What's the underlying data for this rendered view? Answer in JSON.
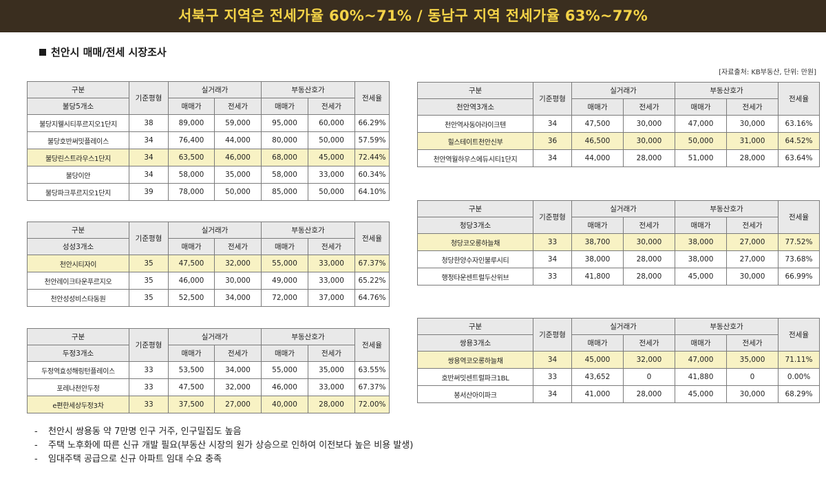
{
  "banner": {
    "text": "서북구 지역은 전세가율 60%~71%   / 동남구 지역 전세가율 63%~77%"
  },
  "section_title": "천안시 매매/전세 시장조사",
  "source_note": "[자료출처: KB부동산, 단위: 만원]",
  "headers": {
    "category": "구분",
    "base_size": "기준평형",
    "actual": "실거래가",
    "listing": "부동산호가",
    "sale": "매매가",
    "jeonse": "전세가",
    "ratio": "전세율"
  },
  "tables": [
    {
      "area": "불당5개소",
      "rows": [
        {
          "name": "불당지웰시티푸르지오1단지",
          "size": "38",
          "actual_sale": "89,000",
          "actual_jeonse": "59,000",
          "list_sale": "95,000",
          "list_jeonse": "60,000",
          "ratio": "66.29%",
          "highlight": false
        },
        {
          "name": "불당호반써밋플레이스",
          "size": "34",
          "actual_sale": "76,400",
          "actual_jeonse": "44,000",
          "list_sale": "80,000",
          "list_jeonse": "50,000",
          "ratio": "57.59%",
          "highlight": false
        },
        {
          "name": "불당린스트라우스1단지",
          "size": "34",
          "actual_sale": "63,500",
          "actual_jeonse": "46,000",
          "list_sale": "68,000",
          "list_jeonse": "45,000",
          "ratio": "72.44%",
          "highlight": true
        },
        {
          "name": "불당이안",
          "size": "34",
          "actual_sale": "58,000",
          "actual_jeonse": "35,000",
          "list_sale": "58,000",
          "list_jeonse": "33,000",
          "ratio": "60.34%",
          "highlight": false
        },
        {
          "name": "불당파크푸르지오1단지",
          "size": "39",
          "actual_sale": "78,000",
          "actual_jeonse": "50,000",
          "list_sale": "85,000",
          "list_jeonse": "50,000",
          "ratio": "64.10%",
          "highlight": false
        }
      ]
    },
    {
      "area": "성성3개소",
      "rows": [
        {
          "name": "천안시티자이",
          "size": "35",
          "actual_sale": "47,500",
          "actual_jeonse": "32,000",
          "list_sale": "55,000",
          "list_jeonse": "33,000",
          "ratio": "67.37%",
          "highlight": true
        },
        {
          "name": "천안레이크타운푸르지오",
          "size": "35",
          "actual_sale": "46,000",
          "actual_jeonse": "30,000",
          "list_sale": "49,000",
          "list_jeonse": "33,000",
          "ratio": "65.22%",
          "highlight": false
        },
        {
          "name": "천안성성비스타동원",
          "size": "35",
          "actual_sale": "52,500",
          "actual_jeonse": "34,000",
          "list_sale": "72,000",
          "list_jeonse": "37,000",
          "ratio": "64.76%",
          "highlight": false
        }
      ]
    },
    {
      "area": "두정3개소",
      "rows": [
        {
          "name": "두정역효성해링턴플레이스",
          "size": "33",
          "actual_sale": "53,500",
          "actual_jeonse": "34,000",
          "list_sale": "55,000",
          "list_jeonse": "35,000",
          "ratio": "63.55%",
          "highlight": false
        },
        {
          "name": "포레나천안두정",
          "size": "33",
          "actual_sale": "47,500",
          "actual_jeonse": "32,000",
          "list_sale": "46,000",
          "list_jeonse": "33,000",
          "ratio": "67.37%",
          "highlight": false
        },
        {
          "name": "e편한세상두정3차",
          "size": "33",
          "actual_sale": "37,500",
          "actual_jeonse": "27,000",
          "list_sale": "40,000",
          "list_jeonse": "28,000",
          "ratio": "72.00%",
          "highlight": true
        }
      ]
    },
    {
      "area": "천안역3개소",
      "rows": [
        {
          "name": "천안역사동아라이크텐",
          "size": "34",
          "actual_sale": "47,500",
          "actual_jeonse": "30,000",
          "list_sale": "47,000",
          "list_jeonse": "30,000",
          "ratio": "63.16%",
          "highlight": false
        },
        {
          "name": "힐스테이트천안신부",
          "size": "36",
          "actual_sale": "46,500",
          "actual_jeonse": "30,000",
          "list_sale": "50,000",
          "list_jeonse": "31,000",
          "ratio": "64.52%",
          "highlight": true
        },
        {
          "name": "천안역월하우스에듀시티1단지",
          "size": "34",
          "actual_sale": "44,000",
          "actual_jeonse": "28,000",
          "list_sale": "51,000",
          "list_jeonse": "28,000",
          "ratio": "63.64%",
          "highlight": false
        }
      ]
    },
    {
      "area": "청당3개소",
      "rows": [
        {
          "name": "청당코오롱하늘채",
          "size": "33",
          "actual_sale": "38,700",
          "actual_jeonse": "30,000",
          "list_sale": "38,000",
          "list_jeonse": "27,000",
          "ratio": "77.52%",
          "highlight": true
        },
        {
          "name": "청당한양수자인불루시티",
          "size": "34",
          "actual_sale": "38,000",
          "actual_jeonse": "28,000",
          "list_sale": "38,000",
          "list_jeonse": "27,000",
          "ratio": "73.68%",
          "highlight": false
        },
        {
          "name": "행정타운센트럴두산위브",
          "size": "33",
          "actual_sale": "41,800",
          "actual_jeonse": "28,000",
          "list_sale": "45,000",
          "list_jeonse": "30,000",
          "ratio": "66.99%",
          "highlight": false
        }
      ]
    },
    {
      "area": "쌍용3개소",
      "rows": [
        {
          "name": "쌍용역코오롱하늘채",
          "size": "34",
          "actual_sale": "45,000",
          "actual_jeonse": "32,000",
          "list_sale": "47,000",
          "list_jeonse": "35,000",
          "ratio": "71.11%",
          "highlight": true
        },
        {
          "name": "호반써밋센트럴파크1BL",
          "size": "33",
          "actual_sale": "43,652",
          "actual_jeonse": "0",
          "list_sale": "41,880",
          "list_jeonse": "0",
          "ratio": "0.00%",
          "highlight": false
        },
        {
          "name": "봉서산아이파크",
          "size": "34",
          "actual_sale": "41,000",
          "actual_jeonse": "28,000",
          "list_sale": "45,000",
          "list_jeonse": "30,000",
          "ratio": "68.29%",
          "highlight": false
        }
      ]
    }
  ],
  "notes": [
    "천안시 쌍용동 약 7만명 인구 거주, 인구밀집도 높음",
    "주택 노후화에 따른 신규 개발 필요(부동산 시장의 원가 상승으로 인하여 이전보다 높은 비용 발생)",
    "임대주택 공급으로 신규 아파트 임대 수요 충족"
  ]
}
